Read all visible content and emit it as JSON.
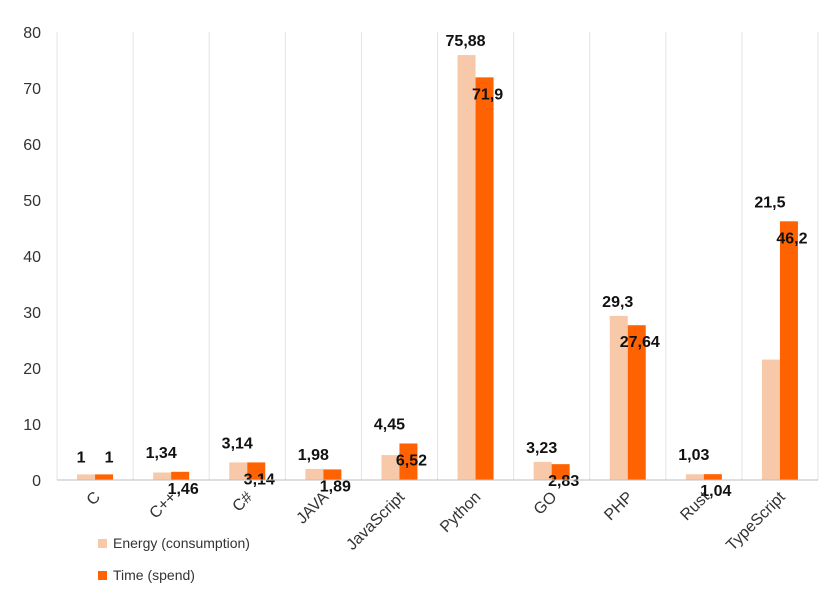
{
  "chart_data": {
    "type": "bar",
    "categories": [
      "C",
      "C++",
      "C#",
      "JAVA",
      "JavaScript",
      "Python",
      "GO",
      "PHP",
      "Rust",
      "TypeScript"
    ],
    "series": [
      {
        "name": "Energy (consumption)",
        "color": "#f7c9a9",
        "values": [
          1,
          1.34,
          3.14,
          1.98,
          4.45,
          75.88,
          3.23,
          29.3,
          1.03,
          21.5
        ],
        "labels": [
          "1",
          "1,34",
          "3,14",
          "1,98",
          "4,45",
          "75,88",
          "3,23",
          "29,3",
          "1,03",
          "21,5"
        ]
      },
      {
        "name": "Time (spend)",
        "color": "#ff6200",
        "values": [
          1,
          1.46,
          3.14,
          1.89,
          6.52,
          71.9,
          2.83,
          27.64,
          1.04,
          46.2
        ],
        "labels": [
          "1",
          "1,46",
          "3,14",
          "1,89",
          "6,52",
          "71,9",
          "2,83",
          "27,64",
          "1,04",
          "46,2"
        ]
      }
    ],
    "yticks": [
      0,
      10,
      20,
      30,
      40,
      50,
      60,
      70,
      80
    ],
    "ylim": [
      0,
      80
    ],
    "grid": "vertical",
    "legend": "bottom-left",
    "gridColor": "#e3e3e3",
    "axisColor": "#bdbdbd"
  }
}
